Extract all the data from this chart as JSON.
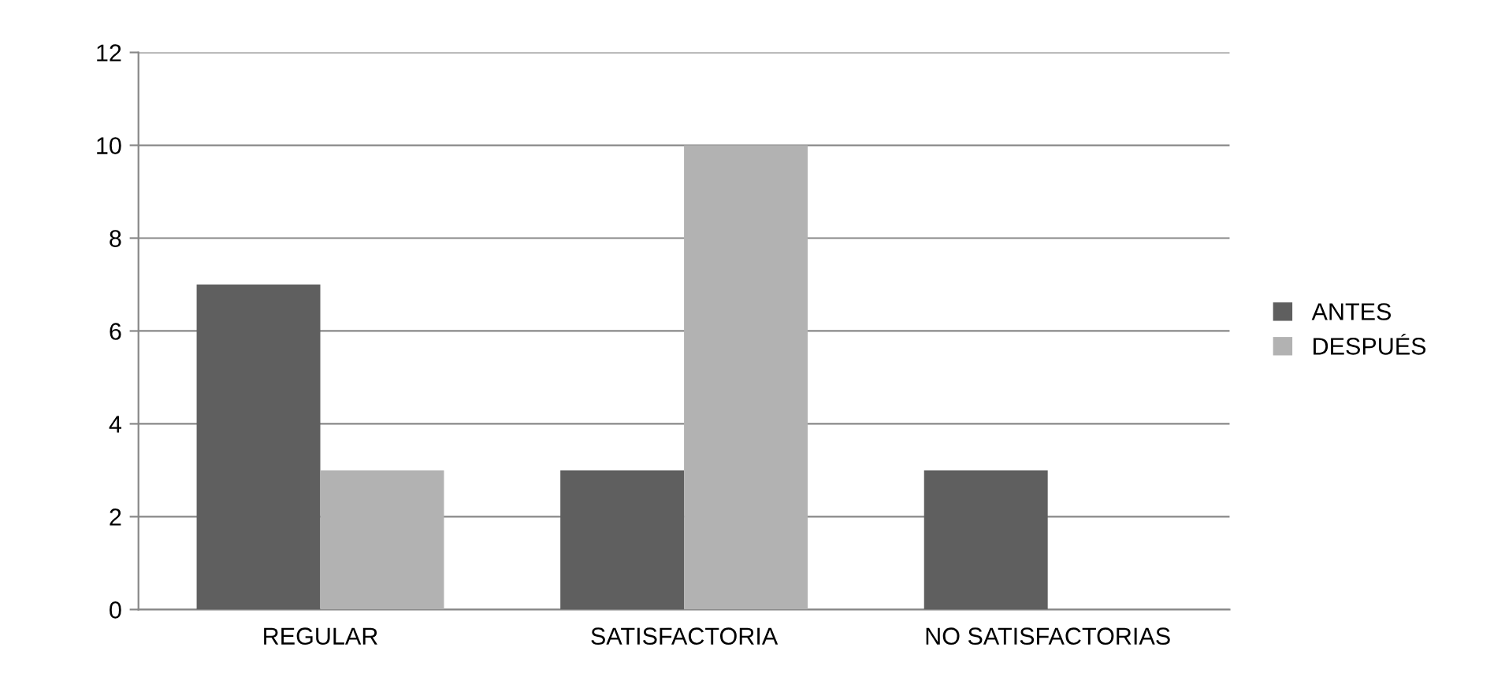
{
  "chart_data": {
    "type": "bar",
    "categories": [
      "REGULAR",
      "SATISFACTORIA",
      "NO SATISFACTORIAS"
    ],
    "series": [
      {
        "name": "ANTES",
        "color": "#5f5f5f",
        "values": [
          7,
          3,
          3
        ]
      },
      {
        "name": "DESPUÉS",
        "color": "#b2b2b2",
        "values": [
          3,
          10,
          0
        ]
      }
    ],
    "ylim": [
      0,
      12
    ],
    "yticks": [
      0,
      2,
      4,
      6,
      8,
      10,
      12
    ],
    "grid": "y",
    "legend": "right"
  }
}
